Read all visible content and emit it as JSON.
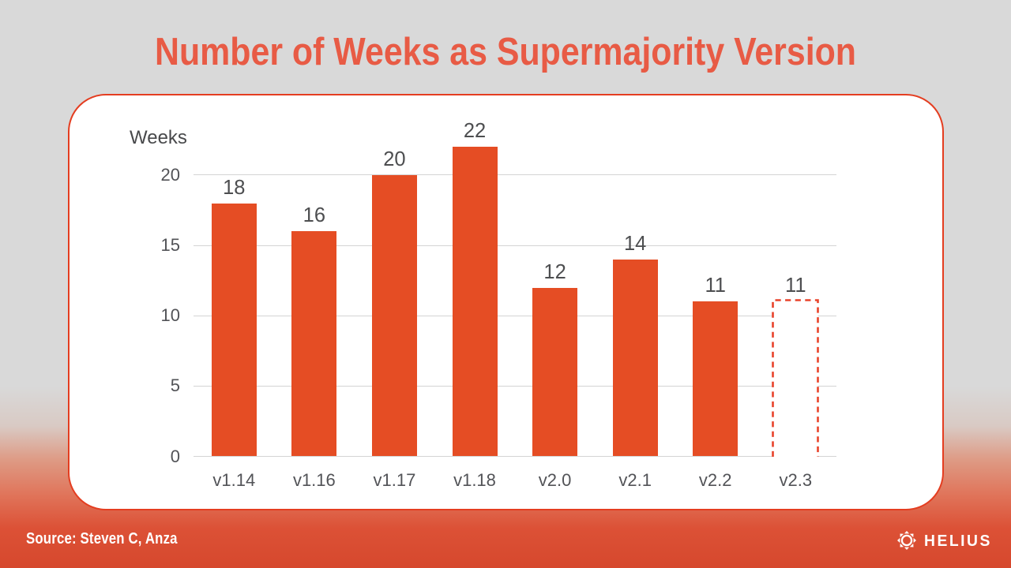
{
  "title": "Number of Weeks as Supermajority Version",
  "chart_data": {
    "type": "bar",
    "title": "Number of Weeks as Supermajority Version",
    "categories": [
      "v1.14",
      "v1.16",
      "v1.17",
      "v1.18",
      "v2.0",
      "v2.1",
      "v2.2",
      "v2.3"
    ],
    "values": [
      18,
      16,
      20,
      22,
      12,
      14,
      11,
      11
    ],
    "value_labels": [
      "18",
      "16",
      "20",
      "22",
      "12",
      "14",
      "11",
      "11"
    ],
    "bar_styles": [
      "solid",
      "solid",
      "solid",
      "solid",
      "solid",
      "solid",
      "solid",
      "dashed"
    ],
    "ylabel": "Weeks",
    "xlabel": "",
    "yticks": [
      0,
      5,
      10,
      15,
      20
    ],
    "ylim": [
      0,
      22.5
    ],
    "grid": "horizontal",
    "legend": "none",
    "bar_color": "#e54d24",
    "dashed_bar_color": "#e8432b"
  },
  "footer": {
    "source": "Source: Steven C, Anza",
    "brand": "HELIUS"
  },
  "colors": {
    "background_top": "#d9d9d9",
    "background_bottom": "#d6482d",
    "title": "#e85b45",
    "card_background": "#ffffff",
    "card_border": "#e43d20",
    "bar": "#e54d24",
    "gridline": "#d4d4d4",
    "axis_text": "#525357",
    "footer_text": "#ffffff"
  }
}
